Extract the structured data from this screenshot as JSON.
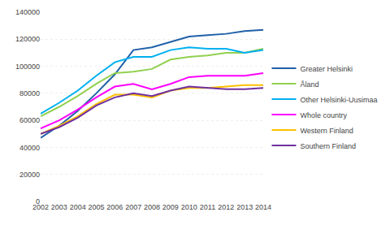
{
  "chart_data": {
    "type": "line",
    "x": [
      2002,
      2003,
      2004,
      2005,
      2006,
      2007,
      2008,
      2009,
      2010,
      2011,
      2012,
      2013,
      2014
    ],
    "series": [
      {
        "name": "Greater Helsinki",
        "color": "#2060a8",
        "values": [
          47000,
          56000,
          67000,
          80000,
          94000,
          112000,
          114000,
          118000,
          122000,
          123000,
          124000,
          126000,
          127000
        ]
      },
      {
        "name": "Åland",
        "color": "#92d050",
        "values": [
          63000,
          70000,
          78000,
          87000,
          95000,
          96000,
          98000,
          105000,
          107000,
          108000,
          110000,
          110000,
          113000
        ]
      },
      {
        "name": "Other Helsinki-Uusimaa",
        "color": "#00b0f0",
        "values": [
          65000,
          73000,
          82000,
          93000,
          103000,
          107000,
          107000,
          112000,
          114000,
          113000,
          113000,
          110000,
          112000
        ]
      },
      {
        "name": "Whole country",
        "color": "#ff00ff",
        "values": [
          54000,
          60000,
          68000,
          77000,
          85000,
          87000,
          83000,
          87000,
          92000,
          93000,
          93000,
          93000,
          95000
        ]
      },
      {
        "name": "Western Finland",
        "color": "#ffc000",
        "values": [
          50000,
          56000,
          63000,
          72000,
          79000,
          79000,
          77000,
          82000,
          84000,
          84000,
          85000,
          86000,
          86000
        ]
      },
      {
        "name": "Southern Finland",
        "color": "#7030a0",
        "values": [
          50000,
          55000,
          62000,
          71000,
          77000,
          80000,
          78000,
          82000,
          85000,
          84000,
          83000,
          83000,
          84000
        ]
      }
    ],
    "xlim": [
      2002,
      2014
    ],
    "xticks": [
      2002,
      2003,
      2004,
      2005,
      2006,
      2007,
      2008,
      2009,
      2010,
      2011,
      2012,
      2013,
      2014
    ],
    "ylim": [
      0,
      140000
    ],
    "yticks": [
      0,
      20000,
      40000,
      60000,
      80000,
      100000,
      120000,
      140000
    ],
    "grid": true,
    "legend": "right"
  }
}
